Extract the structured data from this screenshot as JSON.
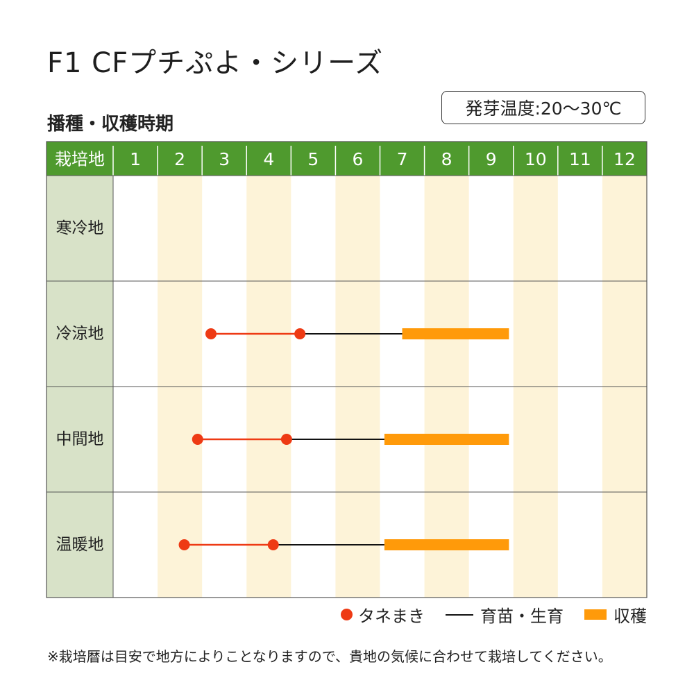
{
  "title": "F1 CFプチぷよ・シリーズ",
  "subtitle": "播種・収穫時期",
  "germination_temp": "発芽温度:20〜30℃",
  "note": "※栽培暦は目安で地方によりことなりますので、貴地の気候に合わせて栽培してください。",
  "legend": {
    "sowing": "タネまき",
    "growing": "育苗・生育",
    "harvest": "収穫"
  },
  "colors": {
    "header_green": "#4f9a2e",
    "region_bg": "#d8e2c8",
    "stripe": "#fdf3d8",
    "sowing": "#ee3a14",
    "growing": "#111111",
    "harvest": "#ff9a0a"
  },
  "chart_data": {
    "type": "table",
    "header_label": "栽培地",
    "months": [
      "1",
      "2",
      "3",
      "4",
      "5",
      "6",
      "7",
      "8",
      "9",
      "10",
      "11",
      "12"
    ],
    "regions": [
      {
        "name": "寒冷地",
        "sowing": null,
        "growing": null,
        "harvest": null
      },
      {
        "name": "冷涼地",
        "sowing": [
          3.2,
          5.2
        ],
        "growing": [
          5.2,
          7.5
        ],
        "harvest": [
          7.5,
          9.9
        ]
      },
      {
        "name": "中間地",
        "sowing": [
          2.9,
          4.9
        ],
        "growing": [
          4.9,
          7.1
        ],
        "harvest": [
          7.1,
          9.9
        ]
      },
      {
        "name": "温暖地",
        "sowing": [
          2.6,
          4.6
        ],
        "growing": [
          4.6,
          7.1
        ],
        "harvest": [
          7.1,
          9.9
        ]
      }
    ]
  }
}
